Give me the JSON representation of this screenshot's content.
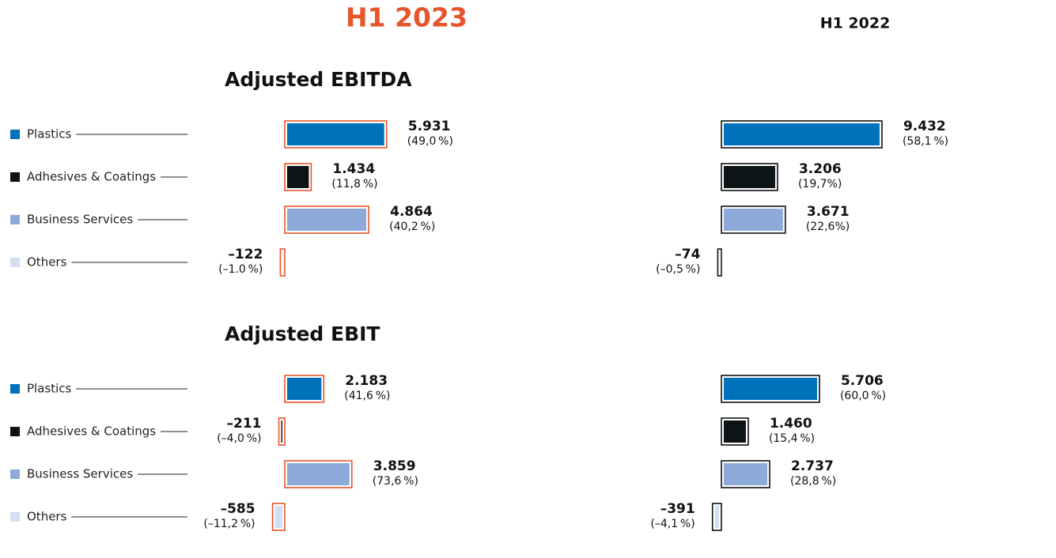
{
  "periods": [
    {
      "name": "H1 2023",
      "color": "#e8552d"
    },
    {
      "name": "H1 2022",
      "color": "#111111"
    }
  ],
  "chart_data": [
    {
      "type": "bar",
      "title": "Adjusted EBITDA",
      "categories": [
        "Plastics",
        "Adhesives & Coatings",
        "Business Services",
        "Others"
      ],
      "colors": [
        "#0072bc",
        "#0d1417",
        "#8eaadb",
        "#d3def2"
      ],
      "series": [
        {
          "values": [
            5931,
            1434,
            4864,
            -122
          ],
          "value_labels": [
            "5.931",
            "1.434",
            "4.864",
            "–122"
          ],
          "shares": [
            49.0,
            11.8,
            40.2,
            -1.0
          ],
          "share_labels": [
            "(49,0 %)",
            "(11,8 %)",
            "(40,2 %)",
            "(–1.0 %)"
          ]
        },
        {
          "values": [
            9432,
            3206,
            3671,
            -74
          ],
          "value_labels": [
            "9.432",
            "3.206",
            "3.671",
            "–74"
          ],
          "shares": [
            58.1,
            19.7,
            22.6,
            -0.5
          ],
          "share_labels": [
            "(58,1 %)",
            "(19,7%)",
            "(22,6%)",
            "(–0,5 %)"
          ]
        }
      ]
    },
    {
      "type": "bar",
      "title": "Adjusted EBIT",
      "categories": [
        "Plastics",
        "Adhesives & Coatings",
        "Business Services",
        "Others"
      ],
      "colors": [
        "#0072bc",
        "#0d1417",
        "#8eaadb",
        "#d3def2"
      ],
      "series": [
        {
          "values": [
            2183,
            -211,
            3859,
            -585
          ],
          "value_labels": [
            "2.183",
            "–211",
            "3.859",
            "–585"
          ],
          "shares": [
            41.6,
            -4.0,
            73.6,
            -11.2
          ],
          "share_labels": [
            "(41,6 %)",
            "(–4,0 %)",
            "(73,6 %)",
            "(–11,2 %)"
          ]
        },
        {
          "values": [
            5706,
            1460,
            2737,
            -391
          ],
          "value_labels": [
            "5.706",
            "1.460",
            "2.737",
            "–391"
          ],
          "shares": [
            60.0,
            15.4,
            28.8,
            -4.1
          ],
          "share_labels": [
            "(60,0 %)",
            "(15,4 %)",
            "(28,8 %)",
            "(–4,1 %)"
          ]
        }
      ]
    }
  ]
}
